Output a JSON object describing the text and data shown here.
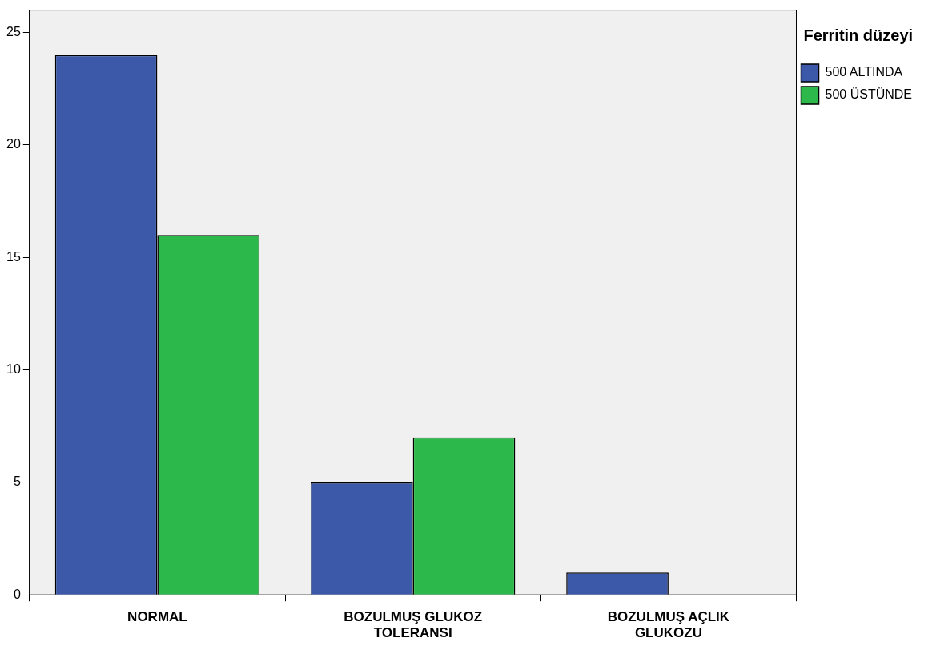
{
  "chart_data": {
    "type": "bar",
    "categories": [
      "NORMAL",
      "BOZULMUŞ GLUKOZ TOLERANSI",
      "BOZULMUŞ AÇLIK GLUKOZU"
    ],
    "series": [
      {
        "name": "500 ALTINDA",
        "color": "#3c58a8",
        "values": [
          24,
          5,
          1
        ]
      },
      {
        "name": "500 ÜSTÜNDE",
        "color": "#2db84b",
        "values": [
          16,
          7,
          0
        ]
      }
    ],
    "ylim": [
      0,
      26
    ],
    "yticks": [
      0,
      5,
      10,
      15,
      20,
      25
    ],
    "legend": "right",
    "legend_title": "Ferritin düzeyi"
  }
}
